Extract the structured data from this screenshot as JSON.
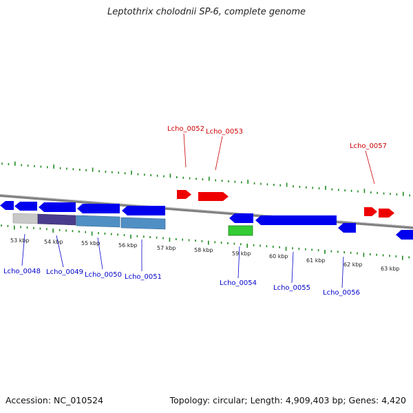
{
  "title": "Leptothrix cholodnii SP-6, complete genome",
  "footer": {
    "accession": "Accession: NC_010524",
    "topology": "Topology: circular; Length: 4,909,403 bp; Genes: 4,420"
  },
  "colors": {
    "backbone": "#808080",
    "tick": "#1f8a1f",
    "forward_gene": "#ee0000",
    "reverse_gene": "#0000ee",
    "rna_gene": "#33cc33",
    "forward_label": "#cc0000",
    "reverse_label": "#0000cc"
  },
  "kbp_labels": [
    "53 kbp",
    "54 kbp",
    "55 kbp",
    "56 kbp",
    "57 kbp",
    "58 kbp",
    "59 kbp",
    "60 kbp",
    "61 kbp",
    "62 kbp",
    "63 kbp"
  ],
  "forward_labels": [
    "Lcho_0052",
    "Lcho_0053",
    "Lcho_0057"
  ],
  "reverse_labels": [
    "Lcho_0048",
    "Lcho_0049",
    "Lcho_0050",
    "Lcho_0051",
    "Lcho_0054",
    "Lcho_0055",
    "Lcho_0056"
  ]
}
